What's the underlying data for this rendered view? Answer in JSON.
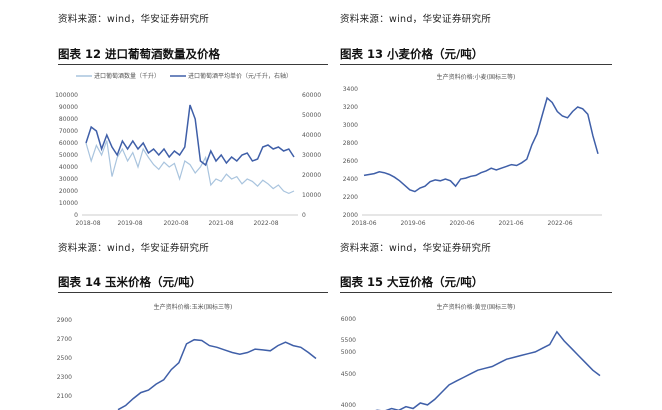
{
  "page": {
    "source_top_left": "资料来源：wind，华安证券研究所",
    "source_top_right": "资料来源：wind，华安证券研究所",
    "source_mid_left": "资料来源：wind，华安证券研究所",
    "source_mid_right": "资料来源：wind，华安证券研究所"
  },
  "figures": [
    {
      "id": "fig12",
      "prefix": "图表",
      "number": "12",
      "title": "进口葡萄酒数量及价格"
    },
    {
      "id": "fig13",
      "prefix": "图表",
      "number": "13",
      "title": "小麦价格（元/吨）"
    },
    {
      "id": "fig14",
      "prefix": "图表",
      "number": "14",
      "title": "玉米价格（元/吨）"
    },
    {
      "id": "fig15",
      "prefix": "图表",
      "number": "15",
      "title": "大豆价格（元/吨）"
    }
  ],
  "chart_data": [
    {
      "id": "fig12",
      "type": "line",
      "title": "",
      "legend": [
        "进口葡萄酒数量（千升）",
        "进口葡萄酒平均单价（元/千升，右轴）"
      ],
      "legend_position": "top",
      "colors": [
        "#a9c4de",
        "#3f5fa8"
      ],
      "x_ticks": [
        "2018-08",
        "2019-08",
        "2020-08",
        "2021-08",
        "2022-08"
      ],
      "y_left_ticks": [
        "0",
        "10000",
        "20000",
        "30000",
        "40000",
        "50000",
        "60000",
        "70000",
        "80000",
        "90000",
        "100000"
      ],
      "y_right_ticks": [
        "0",
        "10000",
        "20000",
        "30000",
        "40000",
        "50000",
        "60000"
      ],
      "ylim_left": [
        0,
        100000
      ],
      "ylim_right": [
        0,
        60000
      ],
      "series": [
        {
          "name": "进口葡萄酒数量（千升）",
          "axis": "left",
          "values": [
            60000,
            45000,
            58000,
            50000,
            62000,
            32000,
            48000,
            55000,
            45000,
            52000,
            40000,
            55000,
            48000,
            42000,
            38000,
            44000,
            40000,
            43000,
            30000,
            45000,
            42000,
            35000,
            40000,
            48000,
            25000,
            30000,
            28000,
            34000,
            30000,
            32000,
            26000,
            30000,
            28000,
            24000,
            29000,
            26000,
            22000,
            25000,
            20000,
            18000,
            20000
          ]
        },
        {
          "name": "进口葡萄酒平均单价（元/千升，右轴）",
          "axis": "right",
          "values": [
            36000,
            44000,
            42000,
            33000,
            40000,
            34000,
            30000,
            37000,
            33000,
            37000,
            33000,
            36000,
            31000,
            33000,
            30000,
            33000,
            29000,
            32000,
            30000,
            34000,
            55000,
            48000,
            27000,
            25000,
            32000,
            27000,
            30000,
            26000,
            29000,
            27000,
            30000,
            31000,
            27000,
            28000,
            34000,
            35000,
            33000,
            34000,
            32000,
            33000,
            29000
          ]
        }
      ],
      "grid": false
    },
    {
      "id": "fig13",
      "type": "line",
      "title": "生产资料价格:小麦(国标三等)",
      "x_ticks": [
        "2018-06",
        "2019-06",
        "2020-06",
        "2021-06",
        "2022-06"
      ],
      "y_ticks": [
        "2000",
        "2200",
        "2400",
        "2600",
        "2800",
        "3000",
        "3200",
        "3400"
      ],
      "ylim": [
        2000,
        3400
      ],
      "colors": [
        "#3f5fa8"
      ],
      "series": [
        {
          "name": "小麦",
          "values": [
            2440,
            2450,
            2460,
            2480,
            2470,
            2450,
            2420,
            2380,
            2330,
            2280,
            2260,
            2300,
            2320,
            2370,
            2390,
            2380,
            2400,
            2380,
            2320,
            2400,
            2410,
            2430,
            2440,
            2470,
            2490,
            2520,
            2500,
            2520,
            2540,
            2560,
            2550,
            2580,
            2620,
            2780,
            2900,
            3100,
            3300,
            3250,
            3150,
            3100,
            3080,
            3150,
            3200,
            3180,
            3120,
            2880,
            2680
          ]
        }
      ],
      "grid": false
    },
    {
      "id": "fig14",
      "type": "line",
      "title": "生产资料价格:玉米(国标三等)",
      "y_ticks": [
        "2100",
        "2300",
        "2500",
        "2700",
        "2900",
        "3100"
      ],
      "ylim": [
        2000,
        3100
      ],
      "colors": [
        "#3f5fa8"
      ],
      "series": [
        {
          "name": "玉米",
          "values": [
            2050,
            2100,
            2180,
            2250,
            2280,
            2350,
            2400,
            2520,
            2600,
            2820,
            2870,
            2860,
            2800,
            2780,
            2750,
            2720,
            2700,
            2720,
            2760,
            2750,
            2740,
            2800,
            2840,
            2800,
            2780,
            2720,
            2650
          ]
        }
      ],
      "grid": false
    },
    {
      "id": "fig15",
      "type": "line",
      "title": "生产资料价格:黄豆(国标三等)",
      "y_ticks": [
        "4000",
        "4500",
        "5000",
        "5500",
        "6000",
        "6500"
      ],
      "ylim": [
        3900,
        6500
      ],
      "colors": [
        "#3f5fa8"
      ],
      "series": [
        {
          "name": "大豆",
          "values": [
            3950,
            4000,
            3980,
            4050,
            4000,
            4100,
            4050,
            4200,
            4150,
            4300,
            4500,
            4700,
            4800,
            4900,
            5000,
            5100,
            5150,
            5200,
            5300,
            5400,
            5450,
            5500,
            5550,
            5600,
            5700,
            5800,
            6150,
            5900,
            5700,
            5500,
            5300,
            5100,
            4950
          ]
        }
      ],
      "grid": false
    }
  ]
}
